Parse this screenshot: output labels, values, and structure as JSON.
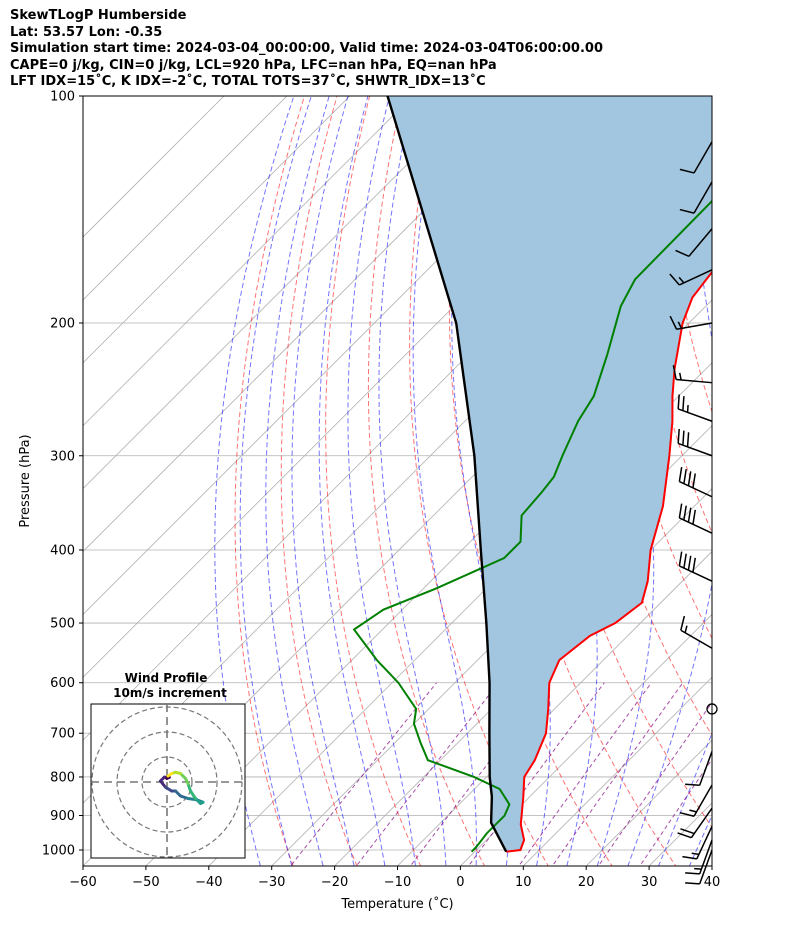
{
  "header": {
    "line1": "SkewTLogP Humberside",
    "line2": "Lat: 53.57   Lon: -0.35",
    "line3": "Simulation start time: 2024-03-04_00:00:00, Valid time: 2024-03-04T06:00:00.00",
    "line4": "CAPE=0 j/kg, CIN=0 j/kg, LCL=920 hPa, LFC=nan hPa, EQ=nan hPa",
    "line5": "LFT IDX=15˚C, K IDX=-2˚C, TOTAL TOTS=37˚C, SHWTR_IDX=13˚C"
  },
  "chart_data": {
    "type": "line",
    "title": "",
    "xlabel": "Temperature (˚C)",
    "ylabel": "Pressure (hPa)",
    "xlim": [
      -60,
      40
    ],
    "ylim": [
      1050,
      100
    ],
    "y_scale": "log",
    "skew": "45deg",
    "grid": true,
    "x_ticks": [
      -60,
      -50,
      -40,
      -30,
      -20,
      -10,
      0,
      10,
      20,
      30,
      40
    ],
    "y_ticks": [
      1000,
      900,
      800,
      700,
      600,
      500,
      400,
      300,
      200,
      100
    ],
    "x_tick_labels": [
      "−60",
      "−50",
      "−40",
      "−30",
      "−20",
      "−10",
      "0",
      "10",
      "20",
      "30",
      "40"
    ],
    "y_tick_labels": [
      "1000",
      "900",
      "800",
      "700",
      "600",
      "500",
      "400",
      "300",
      "200",
      "100"
    ],
    "colors": {
      "temperature": "#ff0000",
      "dewpoint": "#008000",
      "parcel": "#000000",
      "shading": "#a2c6df",
      "dry_adiabat": "#ff0000",
      "moist_adiabat": "#0000ff",
      "mixing_ratio": "#800080"
    },
    "series": [
      {
        "key": "temperature",
        "pressure": [
          1005,
          1000,
          970,
          925,
          850,
          800,
          760,
          700,
          650,
          600,
          560,
          520,
          500,
          470,
          440,
          400,
          350,
          300,
          270,
          250,
          230,
          200,
          185,
          170,
          150,
          130,
          115,
          100
        ],
        "temperature": [
          5,
          7,
          6,
          3,
          -1,
          -4,
          -5,
          -7.5,
          -11,
          -15,
          -17,
          -16,
          -14,
          -13,
          -15.5,
          -20,
          -25,
          -32,
          -37,
          -41,
          -45,
          -51,
          -53.5,
          -54.5,
          -57,
          -60,
          -62,
          -64
        ]
      },
      {
        "key": "dewpoint",
        "pressure": [
          1005,
          990,
          950,
          900,
          870,
          830,
          800,
          760,
          720,
          680,
          650,
          600,
          560,
          530,
          510,
          480,
          450,
          410,
          390,
          360,
          335,
          320,
          300,
          270,
          250,
          220,
          190,
          175,
          100
        ],
        "temperature": [
          -0.5,
          -0.5,
          -1,
          -1,
          -2,
          -6,
          -12,
          -22,
          -26,
          -30,
          -32,
          -39,
          -46,
          -51,
          -54.5,
          -53,
          -48,
          -42,
          -42,
          -46,
          -46.5,
          -47,
          -49,
          -52,
          -53.5,
          -58,
          -63.5,
          -65.5,
          -66
        ]
      },
      {
        "key": "parcel",
        "pressure": [
          1005,
          920,
          850,
          800,
          700,
          600,
          500,
          400,
          300,
          200,
          100
        ],
        "temperature": [
          5,
          -2,
          -6,
          -9.5,
          -16.5,
          -24.5,
          -34.5,
          -47,
          -63,
          -87,
          -134
        ]
      }
    ],
    "wind_barbs": [
      {
        "pressure": 1000,
        "speed_kt": 10,
        "direction_deg": 200
      },
      {
        "pressure": 970,
        "speed_kt": 15,
        "direction_deg": 200
      },
      {
        "pressure": 930,
        "speed_kt": 15,
        "direction_deg": 205
      },
      {
        "pressure": 880,
        "speed_kt": 20,
        "direction_deg": 215
      },
      {
        "pressure": 820,
        "speed_kt": 15,
        "direction_deg": 210
      },
      {
        "pressure": 740,
        "speed_kt": 10,
        "direction_deg": 200
      },
      {
        "pressure": 650,
        "speed_kt": 0,
        "direction_deg": 0,
        "calm": true
      },
      {
        "pressure": 540,
        "speed_kt": 15,
        "direction_deg": 300
      },
      {
        "pressure": 440,
        "speed_kt": 40,
        "direction_deg": 295
      },
      {
        "pressure": 380,
        "speed_kt": 40,
        "direction_deg": 295
      },
      {
        "pressure": 340,
        "speed_kt": 40,
        "direction_deg": 295
      },
      {
        "pressure": 300,
        "speed_kt": 30,
        "direction_deg": 290
      },
      {
        "pressure": 270,
        "speed_kt": 25,
        "direction_deg": 290
      },
      {
        "pressure": 240,
        "speed_kt": 15,
        "direction_deg": 275
      },
      {
        "pressure": 200,
        "speed_kt": 15,
        "direction_deg": 260
      },
      {
        "pressure": 170,
        "speed_kt": 15,
        "direction_deg": 245
      },
      {
        "pressure": 150,
        "speed_kt": 10,
        "direction_deg": 220
      },
      {
        "pressure": 130,
        "speed_kt": 10,
        "direction_deg": 210
      },
      {
        "pressure": 115,
        "speed_kt": 10,
        "direction_deg": 210
      }
    ],
    "wind_profile": {
      "title": "Wind Profile",
      "subtitle": "10m/s increment",
      "colormap": "viridis",
      "hodograph_uv": [
        [
          -0.5,
          1
        ],
        [
          0.5,
          1.5
        ],
        [
          -1.5,
          1.5
        ],
        [
          -3,
          0
        ],
        [
          -1,
          -2.5
        ],
        [
          1.5,
          -4
        ],
        [
          3,
          -4
        ],
        [
          5,
          -6
        ],
        [
          8,
          -7
        ],
        [
          11.5,
          -7.5
        ],
        [
          14,
          -8.5
        ],
        [
          13,
          -9
        ],
        [
          11,
          -7
        ],
        [
          9,
          -4
        ],
        [
          8,
          -1
        ],
        [
          7,
          1
        ],
        [
          5,
          3
        ],
        [
          3,
          3.5
        ],
        [
          1.5,
          3
        ],
        [
          0,
          2
        ]
      ]
    }
  }
}
